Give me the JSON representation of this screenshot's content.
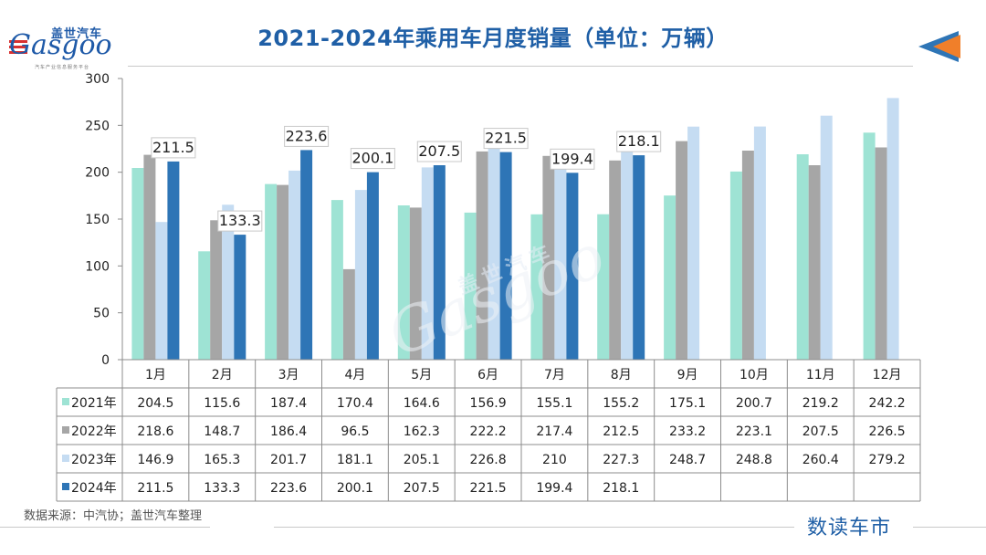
{
  "header": {
    "logo_cn": "盖世汽车",
    "logo_en": "Gasgoo",
    "logo_sub": "汽车产业信息服务平台",
    "title": "2021-2024年乘用车月度销量（单位：万辆）"
  },
  "footer": {
    "source": "数据来源：中汽协；盖世汽车整理",
    "brand": "数读车市"
  },
  "watermark": {
    "cn": "盖世汽车",
    "en": "Gasgoo"
  },
  "colors": {
    "title": "#1f5fa6",
    "accent_orange": "#f07f2a",
    "accent_blue": "#2e75b6"
  },
  "chart_data": {
    "type": "bar",
    "categories": [
      "1月",
      "2月",
      "3月",
      "4月",
      "5月",
      "6月",
      "7月",
      "8月",
      "9月",
      "10月",
      "11月",
      "12月"
    ],
    "series": [
      {
        "name": "2021年",
        "color": "#9ee3d4",
        "values": [
          204.5,
          115.6,
          187.4,
          170.4,
          164.6,
          156.9,
          155.1,
          155.2,
          175.1,
          200.7,
          219.2,
          242.2
        ]
      },
      {
        "name": "2022年",
        "color": "#a6a6a6",
        "values": [
          218.6,
          148.7,
          186.4,
          96.5,
          162.3,
          222.2,
          217.4,
          212.5,
          233.2,
          223.1,
          207.5,
          226.5
        ]
      },
      {
        "name": "2023年",
        "color": "#c5dcf2",
        "values": [
          146.9,
          165.3,
          201.7,
          181.1,
          205.1,
          226.8,
          210,
          227.3,
          248.7,
          248.8,
          260.4,
          279.2
        ]
      },
      {
        "name": "2024年",
        "color": "#2e75b6",
        "values": [
          211.5,
          133.3,
          223.6,
          200.1,
          207.5,
          221.5,
          199.4,
          218.1,
          null,
          null,
          null,
          null
        ]
      }
    ],
    "highlight_series": "2024年",
    "ylim": [
      0,
      300
    ],
    "yticks": [
      0,
      50,
      100,
      150,
      200,
      250,
      300
    ],
    "grid": false,
    "legend": "data-table"
  }
}
